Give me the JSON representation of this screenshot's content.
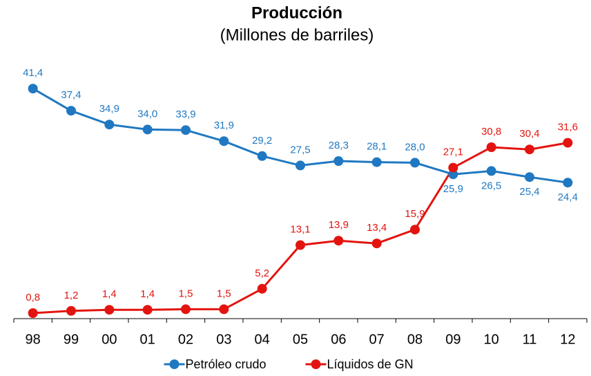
{
  "chart_data": {
    "type": "line",
    "title": "Producción",
    "subtitle": "(Millones de barriles)",
    "categories": [
      "98",
      "99",
      "00",
      "01",
      "02",
      "03",
      "04",
      "05",
      "06",
      "07",
      "08",
      "09",
      "10",
      "11",
      "12"
    ],
    "series": [
      {
        "name": "Petróleo crudo",
        "color": "#1f78c1",
        "values": [
          41.4,
          37.4,
          34.9,
          34.0,
          33.9,
          31.9,
          29.2,
          27.5,
          28.3,
          28.1,
          28.0,
          25.9,
          26.5,
          25.4,
          24.4
        ],
        "value_labels": [
          "41,4",
          "37,4",
          "34,9",
          "34,0",
          "33,9",
          "31,9",
          "29,2",
          "27,5",
          "28,3",
          "28,1",
          "28,0",
          "25,9",
          "26,5",
          "25,4",
          "24,4"
        ]
      },
      {
        "name": "Líquidos de GN",
        "color": "#e3140f",
        "values": [
          0.8,
          1.2,
          1.4,
          1.4,
          1.5,
          1.5,
          5.2,
          13.1,
          13.9,
          13.4,
          15.9,
          27.1,
          30.8,
          30.4,
          31.6
        ],
        "value_labels": [
          "0,8",
          "1,2",
          "1,4",
          "1,4",
          "1,5",
          "1,5",
          "5,2",
          "13,1",
          "13,9",
          "13,4",
          "15,9",
          "27,1",
          "30,8",
          "30,4",
          "31,6"
        ]
      }
    ],
    "ylim": [
      0,
      45
    ],
    "legend": "bottom"
  }
}
